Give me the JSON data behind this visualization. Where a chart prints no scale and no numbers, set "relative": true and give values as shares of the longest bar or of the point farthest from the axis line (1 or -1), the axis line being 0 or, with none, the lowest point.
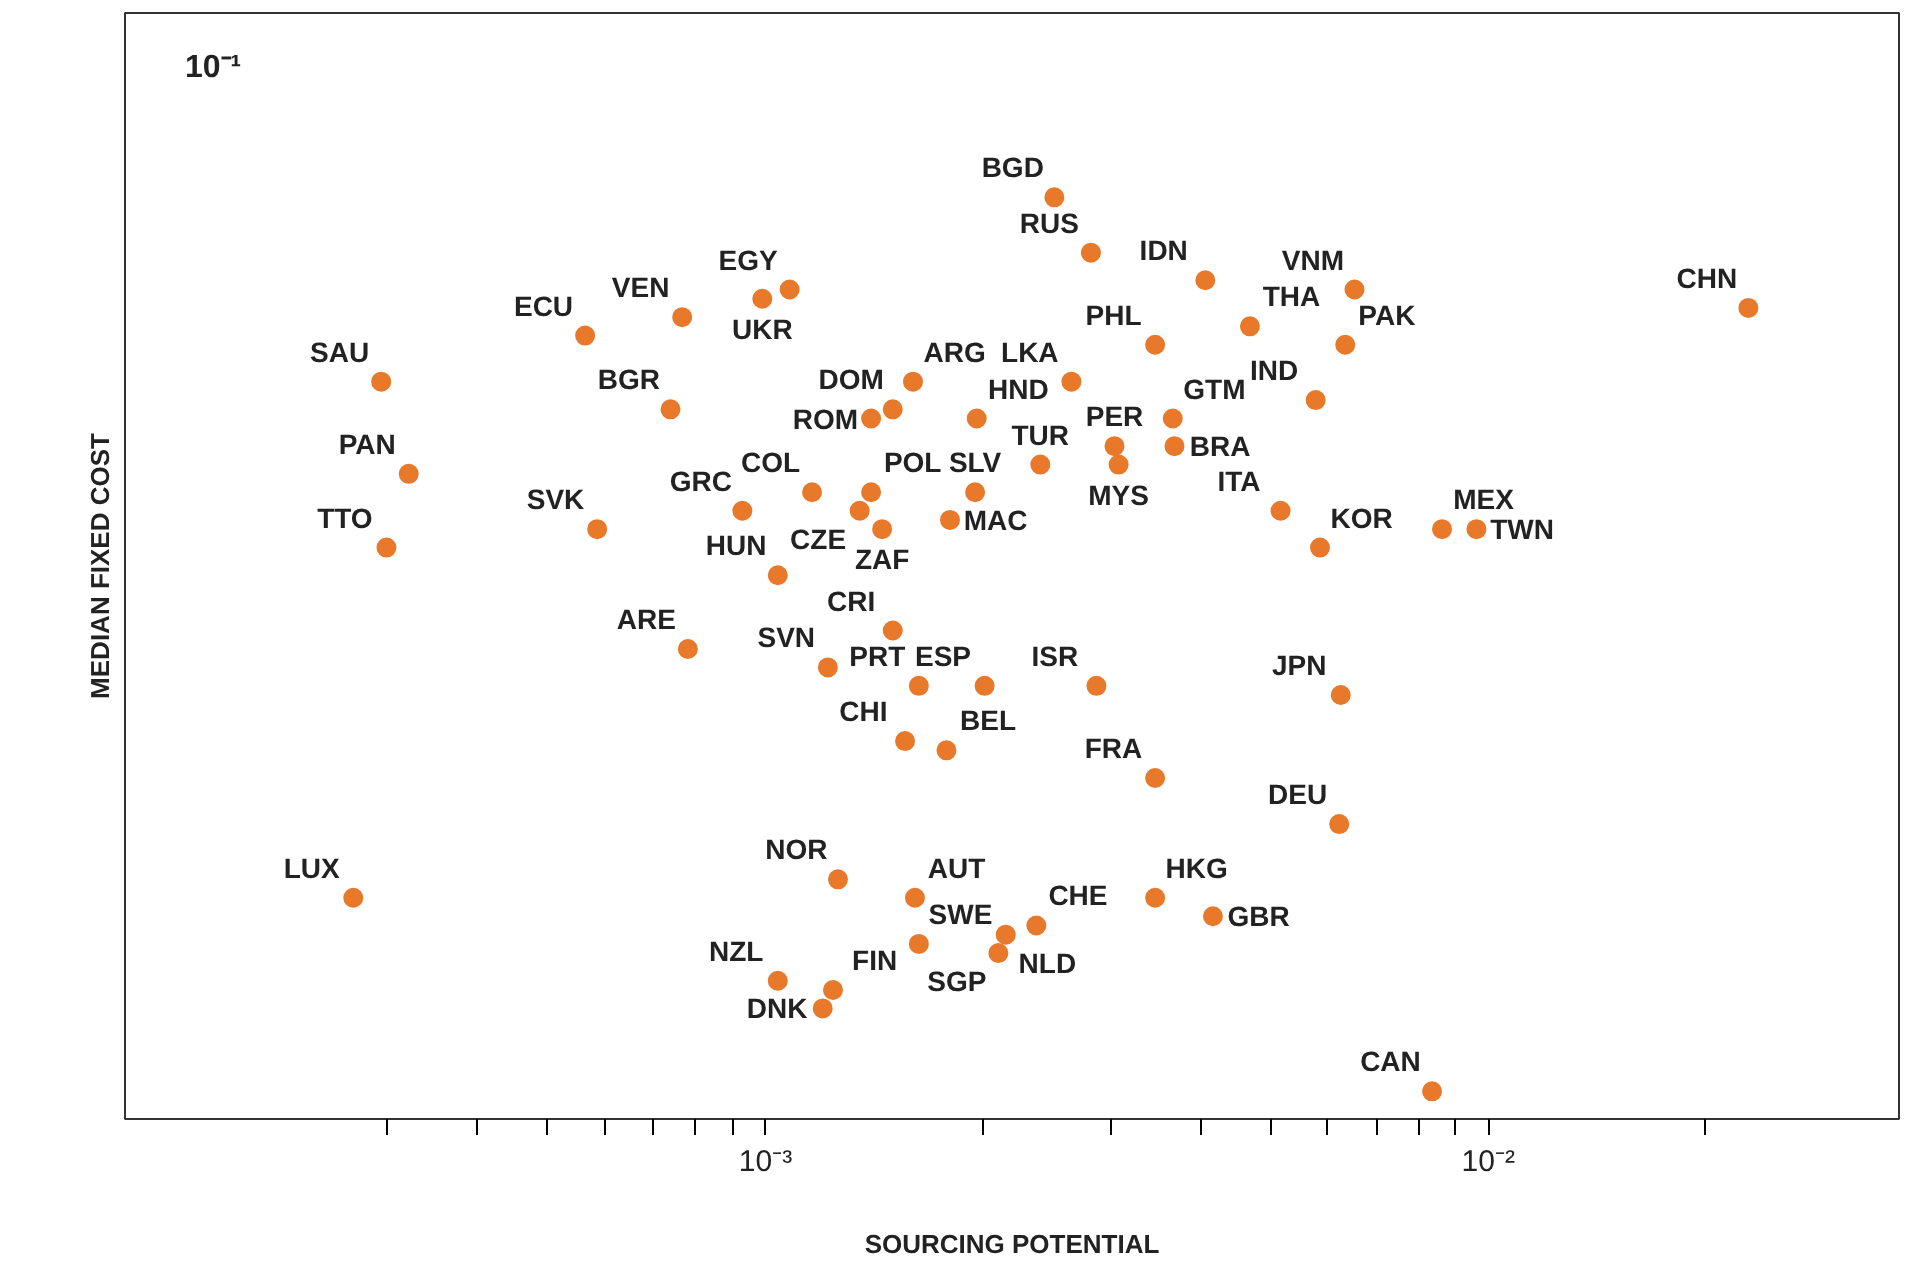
{
  "chart_data": {
    "type": "scatter",
    "xlabel": "SOURCING POTENTIAL",
    "ylabel": "MEDIAN FIXED COST",
    "log": "x",
    "relative": true,
    "grid": false,
    "marker": "circle",
    "xlim": [
      0.00013,
      0.037
    ],
    "xticks": [
      {
        "value": 0.0003,
        "label": null
      },
      {
        "value": 0.0004,
        "label": null
      },
      {
        "value": 0.0005,
        "label": null
      },
      {
        "value": 0.0006,
        "label": null
      },
      {
        "value": 0.0007,
        "label": null
      },
      {
        "value": 0.0008,
        "label": null
      },
      {
        "value": 0.0009,
        "label": null
      },
      {
        "value": 0.001,
        "label": "10⁻³"
      },
      {
        "value": 0.002,
        "label": null
      },
      {
        "value": 0.003,
        "label": null
      },
      {
        "value": 0.004,
        "label": null
      },
      {
        "value": 0.005,
        "label": null
      },
      {
        "value": 0.006,
        "label": null
      },
      {
        "value": 0.007,
        "label": null
      },
      {
        "value": 0.008,
        "label": null
      },
      {
        "value": 0.009,
        "label": null
      },
      {
        "value": 0.01,
        "label": "10⁻²"
      },
      {
        "value": 0.02,
        "label": null
      }
    ],
    "series": [
      {
        "color": "#e8792b",
        "x": [
          0.000294,
          0.000321,
          0.000299,
          0.000269,
          0.000563,
          0.000767,
          0.00108,
          0.00099,
          0.000739,
          0.000585,
          0.000781,
          0.000929,
          0.00116,
          0.0015,
          0.0014,
          0.0016,
          0.00196,
          0.00135,
          0.0014,
          0.00145,
          0.00195,
          0.0018,
          0.00104,
          0.0015,
          0.00122,
          0.00163,
          0.00201,
          0.00156,
          0.00178,
          0.00126,
          0.00161,
          0.00104,
          0.00124,
          0.0012,
          0.00163,
          0.00215,
          0.0021,
          0.00237,
          0.00251,
          0.00282,
          0.00265,
          0.0024,
          0.00304,
          0.00308,
          0.00346,
          0.00366,
          0.00368,
          0.00406,
          0.00468,
          0.00653,
          0.00634,
          0.00577,
          0.00516,
          0.00585,
          0.00863,
          0.00963,
          0.0229,
          0.00287,
          0.00346,
          0.00346,
          0.00416,
          0.00625,
          0.00622,
          0.00836
        ],
        "values": [
          0.8,
          0.7,
          0.62,
          0.24,
          0.85,
          0.87,
          0.9,
          0.89,
          0.77,
          0.64,
          0.51,
          0.66,
          0.68,
          0.77,
          0.76,
          0.8,
          0.76,
          0.66,
          0.68,
          0.64,
          0.68,
          0.65,
          0.59,
          0.53,
          0.49,
          0.47,
          0.47,
          0.41,
          0.4,
          0.26,
          0.24,
          0.15,
          0.14,
          0.12,
          0.19,
          0.2,
          0.18,
          0.21,
          1,
          0.94,
          0.8,
          0.71,
          0.73,
          0.71,
          0.84,
          0.76,
          0.73,
          0.91,
          0.86,
          0.9,
          0.84,
          0.78,
          0.66,
          0.62,
          0.64,
          0.64,
          0.88,
          0.47,
          0.37,
          0.24,
          0.22,
          0.46,
          0.32,
          0.03
        ]
      }
    ],
    "annotations": [
      "10⁻¹",
      {
        "text": "SAU",
        "x": 0.000294,
        "y": 0.8
      },
      {
        "text": "PAN",
        "x": 0.000321,
        "y": 0.7
      },
      {
        "text": "TTO",
        "x": 0.000299,
        "y": 0.62
      },
      {
        "text": "LUX",
        "x": 0.000269,
        "y": 0.24
      },
      {
        "text": "ECU",
        "x": 0.000563,
        "y": 0.85
      },
      {
        "text": "VEN",
        "x": 0.000767,
        "y": 0.87
      },
      {
        "text": "EGY",
        "x": 0.00108,
        "y": 0.9
      },
      {
        "text": "UKR",
        "x": 0.00099,
        "y": 0.89
      },
      {
        "text": "BGR",
        "x": 0.000739,
        "y": 0.77
      },
      {
        "text": "SVK",
        "x": 0.000585,
        "y": 0.64
      },
      {
        "text": "ARE",
        "x": 0.000781,
        "y": 0.51
      },
      {
        "text": "GRC",
        "x": 0.000929,
        "y": 0.66
      },
      {
        "text": "COL",
        "x": 0.00116,
        "y": 0.68
      },
      {
        "text": "DOM",
        "x": 0.0015,
        "y": 0.77
      },
      {
        "text": "ROM",
        "x": 0.0014,
        "y": 0.76
      },
      {
        "text": "ARG",
        "x": 0.0016,
        "y": 0.8
      },
      {
        "text": "HND",
        "x": 0.00196,
        "y": 0.76
      },
      {
        "text": "CZE",
        "x": 0.00135,
        "y": 0.66
      },
      {
        "text": "POL",
        "x": 0.0014,
        "y": 0.68
      },
      {
        "text": "ZAF",
        "x": 0.00145,
        "y": 0.64
      },
      {
        "text": "SLV",
        "x": 0.00195,
        "y": 0.68
      },
      {
        "text": "MAC",
        "x": 0.0018,
        "y": 0.65
      },
      {
        "text": "HUN",
        "x": 0.00104,
        "y": 0.59
      },
      {
        "text": "CRI",
        "x": 0.0015,
        "y": 0.53
      },
      {
        "text": "SVN",
        "x": 0.00122,
        "y": 0.49
      },
      {
        "text": "PRT",
        "x": 0.00163,
        "y": 0.47
      },
      {
        "text": "ESP",
        "x": 0.00201,
        "y": 0.47
      },
      {
        "text": "CHI",
        "x": 0.00156,
        "y": 0.41
      },
      {
        "text": "BEL",
        "x": 0.00178,
        "y": 0.4
      },
      {
        "text": "NOR",
        "x": 0.00126,
        "y": 0.26
      },
      {
        "text": "AUT",
        "x": 0.00161,
        "y": 0.24
      },
      {
        "text": "NZL",
        "x": 0.00104,
        "y": 0.15
      },
      {
        "text": "FIN",
        "x": 0.00124,
        "y": 0.14
      },
      {
        "text": "DNK",
        "x": 0.0012,
        "y": 0.12
      },
      {
        "text": "SWE",
        "x": 0.00163,
        "y": 0.19
      },
      {
        "text": "NLD",
        "x": 0.00215,
        "y": 0.2
      },
      {
        "text": "SGP",
        "x": 0.0021,
        "y": 0.18
      },
      {
        "text": "CHE",
        "x": 0.00237,
        "y": 0.21
      },
      {
        "text": "BGD",
        "x": 0.00251,
        "y": 1
      },
      {
        "text": "RUS",
        "x": 0.00282,
        "y": 0.94
      },
      {
        "text": "LKA",
        "x": 0.00265,
        "y": 0.8
      },
      {
        "text": "TUR",
        "x": 0.0024,
        "y": 0.71
      },
      {
        "text": "PER",
        "x": 0.00304,
        "y": 0.73
      },
      {
        "text": "MYS",
        "x": 0.00308,
        "y": 0.71
      },
      {
        "text": "PHL",
        "x": 0.00346,
        "y": 0.84
      },
      {
        "text": "GTM",
        "x": 0.00366,
        "y": 0.76
      },
      {
        "text": "BRA",
        "x": 0.00368,
        "y": 0.73
      },
      {
        "text": "IDN",
        "x": 0.00406,
        "y": 0.91
      },
      {
        "text": "THA",
        "x": 0.00468,
        "y": 0.86
      },
      {
        "text": "VNM",
        "x": 0.00653,
        "y": 0.9
      },
      {
        "text": "PAK",
        "x": 0.00634,
        "y": 0.84
      },
      {
        "text": "IND",
        "x": 0.00577,
        "y": 0.78
      },
      {
        "text": "ITA",
        "x": 0.00516,
        "y": 0.66
      },
      {
        "text": "KOR",
        "x": 0.00585,
        "y": 0.62
      },
      {
        "text": "MEX",
        "x": 0.00863,
        "y": 0.64
      },
      {
        "text": "TWN",
        "x": 0.00963,
        "y": 0.64
      },
      {
        "text": "CHN",
        "x": 0.0229,
        "y": 0.88
      },
      {
        "text": "ISR",
        "x": 0.00287,
        "y": 0.47
      },
      {
        "text": "FRA",
        "x": 0.00346,
        "y": 0.37
      },
      {
        "text": "HKG",
        "x": 0.00346,
        "y": 0.24
      },
      {
        "text": "GBR",
        "x": 0.00416,
        "y": 0.22
      },
      {
        "text": "JPN",
        "x": 0.00625,
        "y": 0.46
      },
      {
        "text": "DEU",
        "x": 0.00622,
        "y": 0.32
      },
      {
        "text": "CAN",
        "x": 0.00836,
        "y": 0.03
      }
    ]
  }
}
